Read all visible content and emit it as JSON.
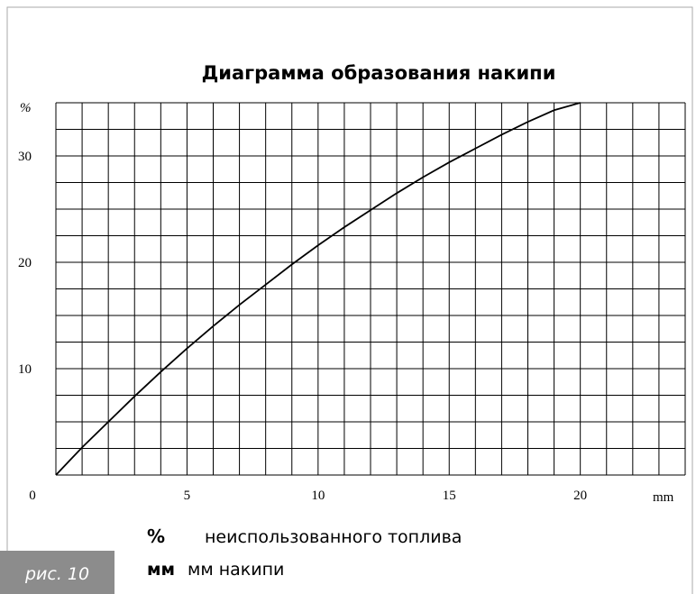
{
  "chart_data": {
    "type": "line",
    "title": "Диаграмма образования накипи",
    "x": [
      0,
      1,
      2,
      3,
      4,
      5,
      6,
      7,
      8,
      9,
      10,
      11,
      12,
      13,
      14,
      15,
      16,
      17,
      18,
      19,
      20
    ],
    "series": [
      {
        "name": "%",
        "color": "#000000",
        "values": [
          0,
          2.6,
          5.0,
          7.4,
          9.7,
          11.9,
          14.0,
          16.0,
          17.9,
          19.8,
          21.6,
          23.3,
          24.9,
          26.5,
          28.0,
          29.4,
          30.7,
          32.0,
          33.2,
          34.3,
          35
        ]
      }
    ],
    "xlim": [
      0,
      24
    ],
    "ylim": [
      0,
      35
    ],
    "xticks": [
      0,
      5,
      10,
      15,
      20
    ],
    "yticks": [
      10,
      20,
      30
    ],
    "x_grid": [
      0,
      1,
      2,
      3,
      4,
      5,
      6,
      7,
      8,
      9,
      10,
      11,
      12,
      13,
      14,
      15,
      16,
      17,
      18,
      19,
      20,
      21,
      22,
      23,
      24
    ],
    "y_grid": [
      0,
      2.5,
      5,
      7.5,
      10,
      12.5,
      15,
      17.5,
      20,
      22.5,
      25,
      27.5,
      30,
      32.5,
      35
    ],
    "x_unit": "mm",
    "y_unit": "%",
    "legend": [
      {
        "symbol": "%",
        "text": "неиспользованного топлива"
      },
      {
        "symbol": "мм",
        "text": "мм накипи"
      }
    ],
    "figure_label": "рис. 10"
  }
}
